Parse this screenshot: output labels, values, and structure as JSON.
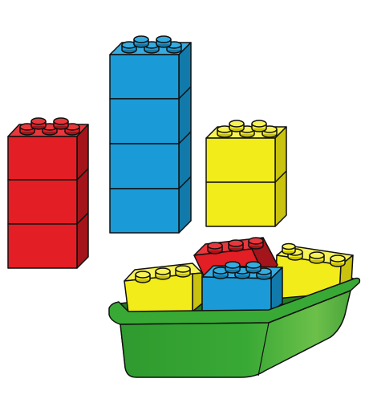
{
  "scene": {
    "subject": "toy-building-bricks",
    "colors": {
      "red": "#e31e24",
      "red_top": "#e8383d",
      "red_side": "#a3151a",
      "blue": "#1a9bd7",
      "blue_top": "#36abe0",
      "blue_side": "#127aab",
      "yellow": "#f2ec1a",
      "yellow_top": "#f7f255",
      "yellow_side": "#c9c20f",
      "green": "#39a935",
      "green_light": "#6cc04a",
      "green_dark": "#237a23",
      "outline": "#111111",
      "background": "#ffffff"
    },
    "stacks": [
      {
        "name": "red-stack",
        "color": "red",
        "bricks": 3
      },
      {
        "name": "blue-stack",
        "color": "blue",
        "bricks": 4
      },
      {
        "name": "yellow-stack",
        "color": "yellow",
        "bricks": 2
      }
    ],
    "boat": {
      "color": "green",
      "bricks_inside": [
        "yellow",
        "red",
        "blue",
        "yellow"
      ]
    }
  }
}
